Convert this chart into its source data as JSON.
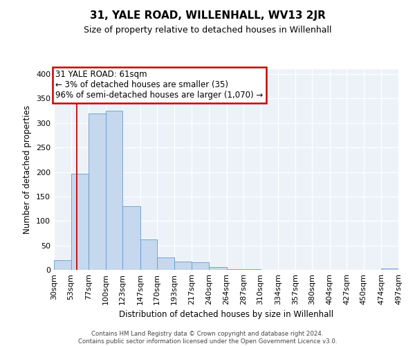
{
  "title": "31, YALE ROAD, WILLENHALL, WV13 2JR",
  "subtitle": "Size of property relative to detached houses in Willenhall",
  "xlabel": "Distribution of detached houses by size in Willenhall",
  "ylabel": "Number of detached properties",
  "footer_line1": "Contains HM Land Registry data © Crown copyright and database right 2024.",
  "footer_line2": "Contains public sector information licensed under the Open Government Licence v3.0.",
  "bins": [
    30,
    53,
    77,
    100,
    123,
    147,
    170,
    193,
    217,
    240,
    264,
    287,
    310,
    334,
    357,
    380,
    404,
    427,
    450,
    474,
    497
  ],
  "bin_labels": [
    "30sqm",
    "53sqm",
    "77sqm",
    "100sqm",
    "123sqm",
    "147sqm",
    "170sqm",
    "193sqm",
    "217sqm",
    "240sqm",
    "264sqm",
    "287sqm",
    "310sqm",
    "334sqm",
    "357sqm",
    "380sqm",
    "404sqm",
    "427sqm",
    "450sqm",
    "474sqm",
    "497sqm"
  ],
  "values": [
    20,
    197,
    320,
    325,
    130,
    62,
    25,
    17,
    15,
    5,
    2,
    1,
    0,
    0,
    0,
    0,
    0,
    0,
    0,
    3
  ],
  "bar_color": "#c5d8ed",
  "bar_edge_color": "#6699cc",
  "property_line_x": 61,
  "property_line_color": "#cc0000",
  "annotation_title": "31 YALE ROAD: 61sqm",
  "annotation_line1": "← 3% of detached houses are smaller (35)",
  "annotation_line2": "96% of semi-detached houses are larger (1,070) →",
  "annotation_box_color": "#cc0000",
  "ylim_max": 410,
  "yticks": [
    0,
    50,
    100,
    150,
    200,
    250,
    300,
    350,
    400
  ],
  "background_color": "#edf2f9",
  "grid_color": "#ffffff",
  "title_fontsize": 11,
  "subtitle_fontsize": 9
}
